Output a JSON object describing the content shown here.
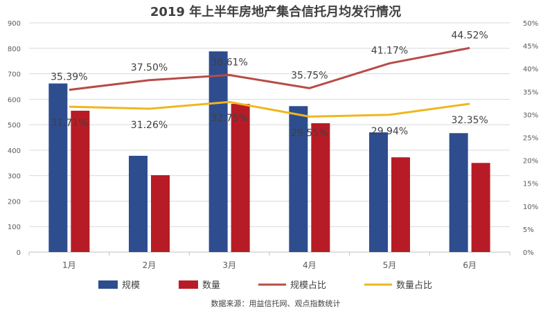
{
  "chart_data": {
    "type": "bar",
    "title": "2019 年上半年房地产集合信托月均发行情况",
    "source": "数据来源：用益信托网、观点指数统计",
    "categories": [
      "1月",
      "2月",
      "3月",
      "4月",
      "5月",
      "6月"
    ],
    "series": [
      {
        "name": "规模",
        "kind": "bar",
        "axis": "left",
        "color": "#2e4d8f",
        "values": [
          662,
          378,
          788,
          573,
          470,
          467
        ]
      },
      {
        "name": "数量",
        "kind": "bar",
        "axis": "left",
        "color": "#b71c26",
        "values": [
          555,
          302,
          582,
          506,
          372,
          350
        ]
      },
      {
        "name": "规模占比",
        "kind": "line",
        "axis": "right",
        "color": "#b84b45",
        "values": [
          35.39,
          37.5,
          38.61,
          35.75,
          41.17,
          44.52
        ],
        "labels": [
          "35.39%",
          "37.50%",
          "38.61%",
          "35.75%",
          "41.17%",
          "44.52%"
        ]
      },
      {
        "name": "数量占比",
        "kind": "line",
        "axis": "right",
        "color": "#f0b61d",
        "values": [
          31.71,
          31.26,
          32.75,
          29.55,
          29.94,
          32.35
        ],
        "labels": [
          "31.71%",
          "31.26%",
          "32.75%",
          "29.55%",
          "29.94%",
          "32.35%"
        ]
      }
    ],
    "y_left": {
      "min": 0,
      "max": 900,
      "step": 100,
      "ticks": [
        "0",
        "100",
        "200",
        "300",
        "400",
        "500",
        "600",
        "700",
        "800",
        "900"
      ]
    },
    "y_right": {
      "min": 0,
      "max": 50,
      "step": 5,
      "ticks": [
        "0%",
        "5%",
        "10%",
        "15%",
        "20%",
        "25%",
        "30%",
        "35%",
        "40%",
        "45%",
        "50%"
      ]
    },
    "grid": true,
    "legend": "bottom"
  }
}
